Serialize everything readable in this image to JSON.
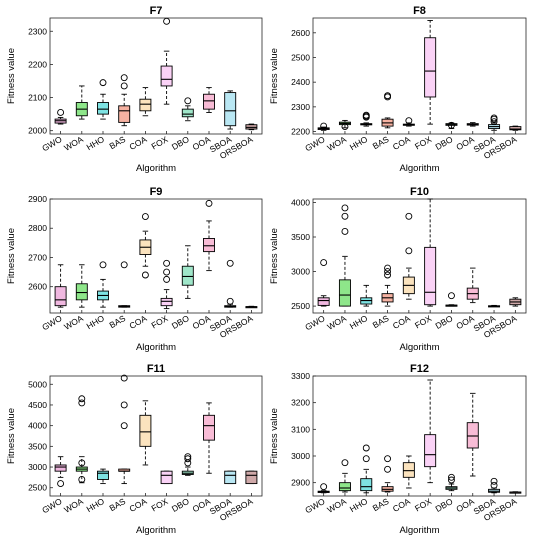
{
  "chart_data": [
    {
      "type": "box",
      "title": "F7",
      "xlabel": "Algorithm",
      "ylabel": "Fitness value",
      "ylim": [
        1990,
        2340
      ],
      "yticks": [
        2000,
        2100,
        2200,
        2300
      ],
      "categories": [
        "GWO",
        "WOA",
        "HHO",
        "BAS",
        "COA",
        "FOX",
        "DBO",
        "OOA",
        "SBOA",
        "ORSBOA"
      ],
      "boxes": [
        {
          "min": 2020,
          "q1": 2023,
          "median": 2030,
          "q3": 2035,
          "max": 2040,
          "outliers": [
            2055
          ]
        },
        {
          "min": 2035,
          "q1": 2045,
          "median": 2065,
          "q3": 2085,
          "max": 2135,
          "outliers": []
        },
        {
          "min": 2035,
          "q1": 2050,
          "median": 2065,
          "q3": 2085,
          "max": 2110,
          "outliers": [
            2145
          ]
        },
        {
          "min": 2015,
          "q1": 2025,
          "median": 2060,
          "q3": 2075,
          "max": 2110,
          "outliers": [
            2135,
            2160
          ]
        },
        {
          "min": 2045,
          "q1": 2060,
          "median": 2080,
          "q3": 2095,
          "max": 2130,
          "outliers": []
        },
        {
          "min": 2080,
          "q1": 2135,
          "median": 2155,
          "q3": 2195,
          "max": 2240,
          "outliers": [
            2330
          ]
        },
        {
          "min": 2030,
          "q1": 2042,
          "median": 2050,
          "q3": 2065,
          "max": 2075,
          "outliers": [
            2090
          ]
        },
        {
          "min": 2055,
          "q1": 2065,
          "median": 2090,
          "q3": 2110,
          "max": 2130,
          "outliers": []
        },
        {
          "min": 2005,
          "q1": 2015,
          "median": 2060,
          "q3": 2115,
          "max": 2120,
          "outliers": []
        },
        {
          "min": 2003,
          "q1": 2005,
          "median": 2010,
          "q3": 2018,
          "max": 2020,
          "outliers": []
        }
      ],
      "colors": [
        "#F0B8E0",
        "#8EE68A",
        "#7EE3E3",
        "#F6B2A2",
        "#FBE3BE",
        "#FAD2F6",
        "#9FE6C9",
        "#F8BCD6",
        "#B9E7F3",
        "#CFA9A9"
      ]
    },
    {
      "type": "box",
      "title": "F8",
      "xlabel": "Algorithm",
      "ylabel": "Fitness value",
      "ylim": [
        2190,
        2660
      ],
      "yticks": [
        2200,
        2300,
        2400,
        2500,
        2600
      ],
      "categories": [
        "GWO",
        "WOA",
        "HHO",
        "BAS",
        "COA",
        "FOX",
        "DBO",
        "OOA",
        "SBOA",
        "ORSBOA"
      ],
      "boxes": [
        {
          "min": 2205,
          "q1": 2208,
          "median": 2212,
          "q3": 2215,
          "max": 2218,
          "outliers": [
            2222
          ]
        },
        {
          "min": 2215,
          "q1": 2228,
          "median": 2233,
          "q3": 2238,
          "max": 2245,
          "outliers": [
            2220
          ]
        },
        {
          "min": 2222,
          "q1": 2227,
          "median": 2230,
          "q3": 2232,
          "max": 2235,
          "outliers": [
            2258,
            2262,
            2266
          ]
        },
        {
          "min": 2215,
          "q1": 2222,
          "median": 2235,
          "q3": 2250,
          "max": 2255,
          "outliers": [
            2340,
            2345
          ]
        },
        {
          "min": 2222,
          "q1": 2226,
          "median": 2228,
          "q3": 2230,
          "max": 2235,
          "outliers": [
            2244
          ]
        },
        {
          "min": 2230,
          "q1": 2340,
          "median": 2445,
          "q3": 2580,
          "max": 2650,
          "outliers": []
        },
        {
          "min": 2212,
          "q1": 2225,
          "median": 2228,
          "q3": 2232,
          "max": 2235,
          "outliers": [
            2225
          ]
        },
        {
          "min": 2222,
          "q1": 2226,
          "median": 2229,
          "q3": 2232,
          "max": 2236,
          "outliers": []
        },
        {
          "min": 2205,
          "q1": 2212,
          "median": 2220,
          "q3": 2228,
          "max": 2235,
          "outliers": [
            2240,
            2250,
            2255
          ]
        },
        {
          "min": 2205,
          "q1": 2207,
          "median": 2210,
          "q3": 2220,
          "max": 2222,
          "outliers": []
        }
      ],
      "colors": [
        "#F0B8E0",
        "#8EE68A",
        "#7EE3E3",
        "#F6B2A2",
        "#FBE3BE",
        "#FAD2F6",
        "#9FE6C9",
        "#F8BCD6",
        "#B9E7F3",
        "#CFA9A9"
      ]
    },
    {
      "type": "box",
      "title": "F9",
      "xlabel": "Algorithm",
      "ylabel": "Fitness value",
      "ylim": [
        2510,
        2900
      ],
      "yticks": [
        2600,
        2700,
        2800,
        2900
      ],
      "categories": [
        "GWO",
        "WOA",
        "HHO",
        "BAS",
        "COA",
        "FOX",
        "DBO",
        "OOA",
        "SBOA",
        "ORSBOA"
      ],
      "boxes": [
        {
          "min": 2530,
          "q1": 2535,
          "median": 2555,
          "q3": 2600,
          "max": 2675,
          "outliers": []
        },
        {
          "min": 2530,
          "q1": 2555,
          "median": 2580,
          "q3": 2610,
          "max": 2675,
          "outliers": []
        },
        {
          "min": 2530,
          "q1": 2555,
          "median": 2570,
          "q3": 2585,
          "max": 2625,
          "outliers": [
            2675
          ]
        },
        {
          "min": 2530,
          "q1": 2530,
          "median": 2532,
          "q3": 2535,
          "max": 2535,
          "outliers": [
            2675
          ]
        },
        {
          "min": 2670,
          "q1": 2710,
          "median": 2735,
          "q3": 2760,
          "max": 2790,
          "outliers": [
            2640,
            2840
          ]
        },
        {
          "min": 2525,
          "q1": 2535,
          "median": 2550,
          "q3": 2560,
          "max": 2590,
          "outliers": [
            2625,
            2650,
            2680
          ]
        },
        {
          "min": 2560,
          "q1": 2605,
          "median": 2635,
          "q3": 2670,
          "max": 2740,
          "outliers": []
        },
        {
          "min": 2655,
          "q1": 2720,
          "median": 2740,
          "q3": 2765,
          "max": 2825,
          "outliers": [
            2885
          ]
        },
        {
          "min": 2530,
          "q1": 2530,
          "median": 2532,
          "q3": 2535,
          "max": 2540,
          "outliers": [
            2550,
            2680
          ]
        },
        {
          "min": 2530,
          "q1": 2530,
          "median": 2531,
          "q3": 2532,
          "max": 2533,
          "outliers": []
        }
      ],
      "colors": [
        "#F0B8E0",
        "#8EE68A",
        "#7EE3E3",
        "#F6B2A2",
        "#FBE3BE",
        "#FAD2F6",
        "#9FE6C9",
        "#F8BCD6",
        "#B9E7F3",
        "#CFA9A9"
      ]
    },
    {
      "type": "box",
      "title": "F10",
      "xlabel": "Algorithm",
      "ylabel": "Fitness value",
      "ylim": [
        2400,
        4050
      ],
      "yticks": [
        2500,
        3000,
        3500,
        4000
      ],
      "categories": [
        "GWO",
        "WOA",
        "HHO",
        "BAS",
        "COA",
        "FOX",
        "DBO",
        "OOA",
        "SBOA",
        "ORSBOA"
      ],
      "boxes": [
        {
          "min": 2500,
          "q1": 2510,
          "median": 2580,
          "q3": 2620,
          "max": 2650,
          "outliers": [
            3130
          ]
        },
        {
          "min": 2500,
          "q1": 2500,
          "median": 2660,
          "q3": 2880,
          "max": 3220,
          "outliers": [
            3580,
            3800,
            3920
          ]
        },
        {
          "min": 2500,
          "q1": 2530,
          "median": 2580,
          "q3": 2620,
          "max": 2800,
          "outliers": []
        },
        {
          "min": 2500,
          "q1": 2560,
          "median": 2620,
          "q3": 2680,
          "max": 2800,
          "outliers": [
            2950,
            3000,
            3050
          ]
        },
        {
          "min": 2600,
          "q1": 2680,
          "median": 2800,
          "q3": 2920,
          "max": 3050,
          "outliers": [
            3300,
            3800
          ]
        },
        {
          "min": 2500,
          "q1": 2520,
          "median": 2700,
          "q3": 3350,
          "max": 4050,
          "outliers": []
        },
        {
          "min": 2500,
          "q1": 2510,
          "median": 2510,
          "q3": 2515,
          "max": 2520,
          "outliers": [
            2650
          ]
        },
        {
          "min": 2550,
          "q1": 2600,
          "median": 2680,
          "q3": 2760,
          "max": 3050,
          "outliers": []
        },
        {
          "min": 2500,
          "q1": 2500,
          "median": 2500,
          "q3": 2505,
          "max": 2510,
          "outliers": []
        },
        {
          "min": 2500,
          "q1": 2520,
          "median": 2560,
          "q3": 2600,
          "max": 2620,
          "outliers": []
        }
      ],
      "colors": [
        "#F0B8E0",
        "#8EE68A",
        "#7EE3E3",
        "#F6B2A2",
        "#FBE3BE",
        "#FAD2F6",
        "#9FE6C9",
        "#F8BCD6",
        "#B9E7F3",
        "#CFA9A9"
      ]
    },
    {
      "type": "box",
      "title": "F11",
      "xlabel": "Algorithm",
      "ylabel": "Fitness value",
      "ylim": [
        2300,
        5200
      ],
      "yticks": [
        2500,
        3000,
        3500,
        4000,
        4500,
        5000
      ],
      "categories": [
        "GWO",
        "WOA",
        "HHO",
        "BAS",
        "COA",
        "FOX",
        "DBO",
        "OOA",
        "SBOA",
        "ORSBOA"
      ],
      "boxes": [
        {
          "min": 2750,
          "q1": 2900,
          "median": 3000,
          "q3": 3050,
          "max": 3250,
          "outliers": [
            2600
          ]
        },
        {
          "min": 2620,
          "q1": 2900,
          "median": 2950,
          "q3": 3000,
          "max": 3250,
          "outliers": [
            2700,
            3100,
            4550,
            4650
          ]
        },
        {
          "min": 2600,
          "q1": 2700,
          "median": 2850,
          "q3": 2900,
          "max": 2950,
          "outliers": []
        },
        {
          "min": 2600,
          "q1": 2900,
          "median": 2900,
          "q3": 2950,
          "max": 2950,
          "outliers": [
            4000,
            4500,
            5150
          ]
        },
        {
          "min": 3050,
          "q1": 3500,
          "median": 3850,
          "q3": 4250,
          "max": 4600,
          "outliers": []
        },
        {
          "min": 2600,
          "q1": 2600,
          "median": 2800,
          "q3": 2900,
          "max": 2900,
          "outliers": []
        },
        {
          "min": 2800,
          "q1": 2820,
          "median": 2850,
          "q3": 2900,
          "max": 3000,
          "outliers": [
            3100,
            3200,
            3250
          ]
        },
        {
          "min": 2850,
          "q1": 3650,
          "median": 4000,
          "q3": 4250,
          "max": 4550,
          "outliers": []
        },
        {
          "min": 2600,
          "q1": 2600,
          "median": 2800,
          "q3": 2900,
          "max": 2900,
          "outliers": []
        },
        {
          "min": 2600,
          "q1": 2600,
          "median": 2800,
          "q3": 2900,
          "max": 2900,
          "outliers": []
        }
      ],
      "colors": [
        "#F0B8E0",
        "#8EE68A",
        "#7EE3E3",
        "#F6B2A2",
        "#FBE3BE",
        "#FAD2F6",
        "#9FE6C9",
        "#F8BCD6",
        "#B9E7F3",
        "#CFA9A9"
      ]
    },
    {
      "type": "box",
      "title": "F12",
      "xlabel": "Algorithm",
      "ylabel": "Fitness value",
      "ylim": [
        2850,
        3300
      ],
      "yticks": [
        2900,
        3000,
        3100,
        3200,
        3300
      ],
      "categories": [
        "GWO",
        "WOA",
        "HHO",
        "BAS",
        "COA",
        "FOX",
        "DBO",
        "OOA",
        "SBOA",
        "ORSBOA"
      ],
      "boxes": [
        {
          "min": 2862,
          "q1": 2863,
          "median": 2866,
          "q3": 2868,
          "max": 2870,
          "outliers": [
            2885
          ]
        },
        {
          "min": 2865,
          "q1": 2870,
          "median": 2880,
          "q3": 2900,
          "max": 2935,
          "outliers": [
            2975
          ]
        },
        {
          "min": 2862,
          "q1": 2870,
          "median": 2885,
          "q3": 2915,
          "max": 2950,
          "outliers": [
            2990,
            3030
          ]
        },
        {
          "min": 2865,
          "q1": 2868,
          "median": 2875,
          "q3": 2885,
          "max": 2900,
          "outliers": [
            2950,
            2990
          ]
        },
        {
          "min": 2880,
          "q1": 2920,
          "median": 2945,
          "q3": 2975,
          "max": 3000,
          "outliers": []
        },
        {
          "min": 2900,
          "q1": 2960,
          "median": 3005,
          "q3": 3080,
          "max": 3285,
          "outliers": []
        },
        {
          "min": 2870,
          "q1": 2875,
          "median": 2880,
          "q3": 2885,
          "max": 2895,
          "outliers": [
            2910,
            2920
          ]
        },
        {
          "min": 2925,
          "q1": 3030,
          "median": 3075,
          "q3": 3125,
          "max": 3235,
          "outliers": []
        },
        {
          "min": 2862,
          "q1": 2864,
          "median": 2868,
          "q3": 2875,
          "max": 2880,
          "outliers": [
            2890,
            2905
          ]
        },
        {
          "min": 2862,
          "q1": 2863,
          "median": 2864,
          "q3": 2865,
          "max": 2866,
          "outliers": []
        }
      ],
      "colors": [
        "#F0B8E0",
        "#8EE68A",
        "#7EE3E3",
        "#F6B2A2",
        "#FBE3BE",
        "#FAD2F6",
        "#9FE6C9",
        "#F8BCD6",
        "#B9E7F3",
        "#CFA9A9"
      ]
    }
  ]
}
